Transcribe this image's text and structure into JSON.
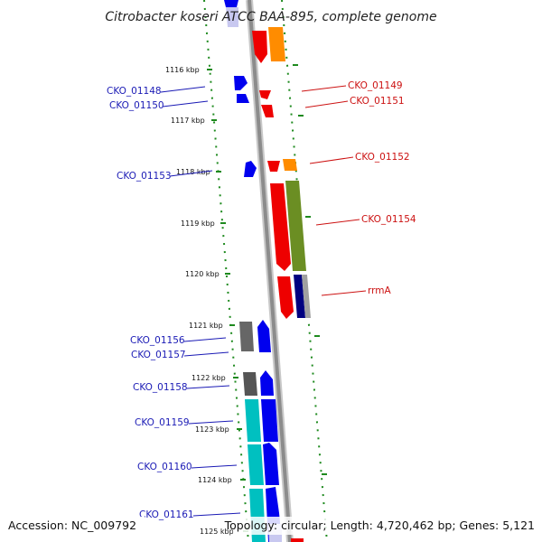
{
  "title": "Citrobacter koseri ATCC BAA-895, complete genome",
  "accession": "Accession: NC_009792",
  "summary": "Topology: circular; Length: 4,720,462 bp; Genes: 5,121",
  "kbp_ticks": [
    "1116 kbp",
    "1117 kbp",
    "1118 kbp",
    "1119 kbp",
    "1120 kbp",
    "1121 kbp",
    "1122 kbp",
    "1123 kbp",
    "1124 kbp",
    "1125 kbp"
  ],
  "left_labels": [
    "CKO_01148",
    "CKO_01150",
    "CKO_01153",
    "CKO_01156",
    "CKO_01157",
    "CKO_01158",
    "CKO_01159",
    "CKO_01160",
    "CKO_01161"
  ],
  "right_labels": [
    "CKO_01149",
    "CKO_01151",
    "CKO_01152",
    "CKO_01154",
    "rrmA"
  ],
  "colors": {
    "forward": "#0000ee",
    "reverse": "#ee0000",
    "orange": "#ff8c00",
    "olive": "#6b8e23",
    "gray": "#666666",
    "cyan": "#00c0c0",
    "navy": "#000080",
    "backbone": "#8c8c8c",
    "gc_dots": "#1e8a1e"
  }
}
